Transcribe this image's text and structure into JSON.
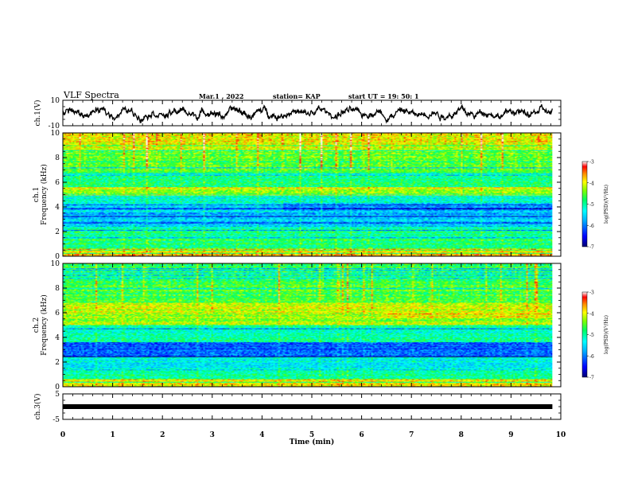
{
  "header": {
    "title": "VLF Spectra",
    "date": "Mar.1  , 2022",
    "station": "station= KAP",
    "start": "start  UT  =   19: 50: 1"
  },
  "chart_data": [
    {
      "type": "line",
      "name": "ch1-waveform",
      "ylabel": "ch.1(V)",
      "ylim": [
        -10,
        10
      ],
      "yticks": [
        "10",
        "-10"
      ],
      "xlim": [
        0,
        10
      ],
      "x_end": 9.83
    },
    {
      "type": "heatmap",
      "name": "ch1-spectrogram",
      "ylabel": "ch.1\nFrequency (kHz)",
      "ylabel_lines": [
        "ch.1",
        "Frequency (kHz)"
      ],
      "ylim": [
        0,
        10
      ],
      "yticks": [
        "0",
        "2",
        "4",
        "6",
        "8",
        "10"
      ],
      "xlim": [
        0,
        10
      ],
      "x_end": 9.83,
      "colorbar": {
        "range": [
          -7,
          -3
        ],
        "ticks": [
          "-3",
          "-4",
          "-5",
          "-6",
          "-7"
        ],
        "label": "log(PSD)(V²/Hz)"
      }
    },
    {
      "type": "heatmap",
      "name": "ch2-spectrogram",
      "ylabel": "ch.2\nFrequency (kHz)",
      "ylabel_lines": [
        "ch.2",
        "Frequency (kHz)"
      ],
      "ylim": [
        0,
        10
      ],
      "yticks": [
        "0",
        "2",
        "4",
        "6",
        "8",
        "10"
      ],
      "xlim": [
        0,
        10
      ],
      "x_end": 9.83,
      "colorbar": {
        "range": [
          -7,
          -3
        ],
        "ticks": [
          "-3",
          "-4",
          "-5",
          "-6",
          "-7"
        ],
        "label": "log(PSD)(V²/Hz)"
      }
    },
    {
      "type": "line",
      "name": "ch3-waveform",
      "ylabel": "ch.3(V)",
      "ylim": [
        -5,
        5
      ],
      "yticks": [
        "5",
        "-5"
      ],
      "xlim": [
        0,
        10
      ],
      "x_end": 9.83,
      "level": 0
    }
  ],
  "xaxis": {
    "label": "Time  (min)",
    "ticks": [
      "0",
      "1",
      "2",
      "3",
      "4",
      "5",
      "6",
      "7",
      "8",
      "9",
      "10"
    ]
  },
  "colors": {
    "line": "#000000",
    "colormap": [
      "#000070",
      "#0000ff",
      "#00aaff",
      "#00ffff",
      "#00ff80",
      "#66ff00",
      "#ffff00",
      "#ff8800",
      "#ff0000",
      "#ffffff"
    ]
  }
}
